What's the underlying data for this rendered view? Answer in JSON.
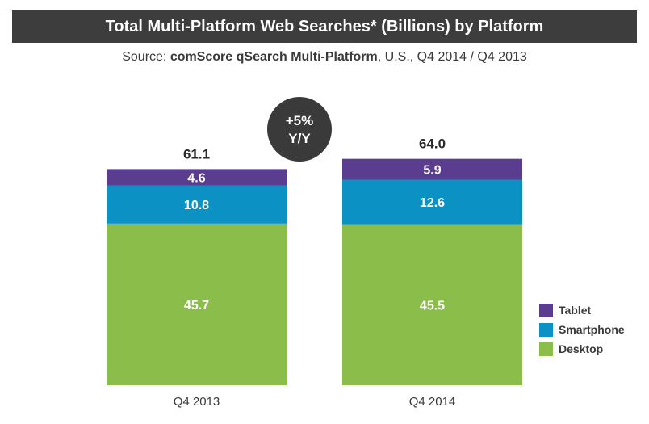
{
  "header": {
    "title": "Total Multi-Platform Web Searches* (Billions) by Platform",
    "subtitle_prefix": "Source: ",
    "subtitle_bold": "comScore qSearch Multi-Platform",
    "subtitle_suffix": ", U.S., Q4 2014 / Q4 2013"
  },
  "badge": {
    "line1": "+5%",
    "line2": "Y/Y",
    "color": "#3a3a3a"
  },
  "chart_data": {
    "type": "bar",
    "stacked": true,
    "categories": [
      "Q4 2013",
      "Q4 2014"
    ],
    "series": [
      {
        "name": "Desktop",
        "values": [
          45.7,
          45.5
        ],
        "color": "#8bbd4a"
      },
      {
        "name": "Smartphone",
        "values": [
          10.8,
          12.6
        ],
        "color": "#0b91c4"
      },
      {
        "name": "Tablet",
        "values": [
          4.6,
          5.9
        ],
        "color": "#5b3d8f"
      }
    ],
    "totals": [
      "61.1",
      "64.0"
    ],
    "ylim": [
      0,
      64
    ],
    "grid": false,
    "legend_position": "right"
  },
  "legend": [
    {
      "name": "Tablet",
      "color": "#5b3d8f"
    },
    {
      "name": "Smartphone",
      "color": "#0b91c4"
    },
    {
      "name": "Desktop",
      "color": "#8bbd4a"
    }
  ]
}
